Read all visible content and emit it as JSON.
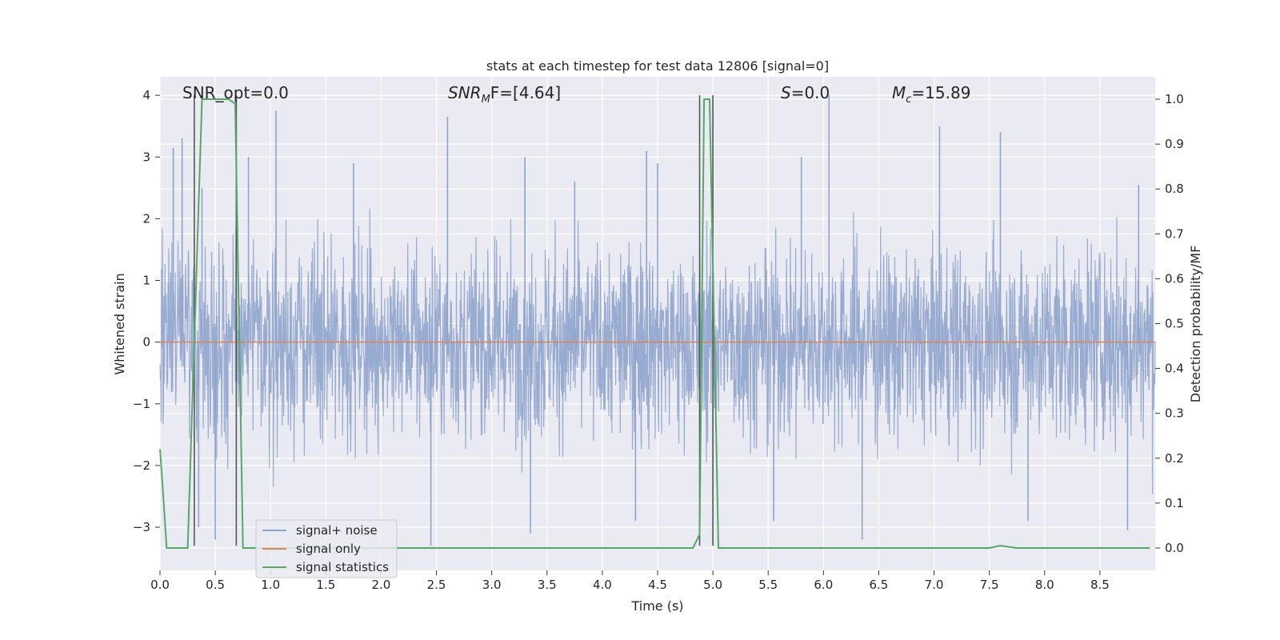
{
  "chart_data": {
    "type": "line",
    "title": "stats at each timestep for test data 12806 [signal=0]",
    "xlabel": "Time (s)",
    "ylabel_left": "Whitened strain",
    "ylabel_right": "Detection probability/MF",
    "xlim": [
      0.0,
      9.0
    ],
    "ylim_left": [
      -3.7,
      4.3
    ],
    "ylim_right": [
      -0.05,
      1.05
    ],
    "x_ticks": [
      "0.0",
      "0.5",
      "1.0",
      "1.5",
      "2.0",
      "2.5",
      "3.0",
      "3.5",
      "4.0",
      "4.5",
      "5.0",
      "5.5",
      "6.0",
      "6.5",
      "7.0",
      "7.5",
      "8.0",
      "8.5"
    ],
    "y_ticks_left": [
      "−3",
      "−2",
      "−1",
      "0",
      "1",
      "2",
      "3",
      "4"
    ],
    "y_ticks_right": [
      "0.0",
      "0.1",
      "0.2",
      "0.3",
      "0.4",
      "0.5",
      "0.6",
      "0.7",
      "0.8",
      "0.9",
      "1.0"
    ],
    "grid": true,
    "legend_position": "lower-left",
    "annotations": {
      "snr_opt": "SNR_opt=0.0",
      "snr_mf_italic": "SNR",
      "snr_mf_sub": "M",
      "snr_mf_rest": "F=[4.64]",
      "s_italic": "S",
      "s_rest": "=0.0",
      "mc_italic": "M",
      "mc_sub": "c",
      "mc_rest": "=15.89"
    },
    "series": [
      {
        "name": "signal+ noise",
        "axis": "left",
        "color": "#8fa4cc",
        "description_level": "whitened strain noise, roughly within [-3.3, 4.0]",
        "spikes": [
          {
            "x": 0.12,
            "y": 3.15
          },
          {
            "x": 0.2,
            "y": 3.3
          },
          {
            "x": 0.38,
            "y": 2.5
          },
          {
            "x": 0.8,
            "y": 3.0
          },
          {
            "x": 1.05,
            "y": 3.75
          },
          {
            "x": 1.75,
            "y": 2.9
          },
          {
            "x": 2.6,
            "y": 3.65
          },
          {
            "x": 3.3,
            "y": 3.0
          },
          {
            "x": 3.75,
            "y": 2.6
          },
          {
            "x": 4.4,
            "y": 3.1
          },
          {
            "x": 4.5,
            "y": 2.9
          },
          {
            "x": 5.8,
            "y": 3.0
          },
          {
            "x": 6.05,
            "y": 4.0
          },
          {
            "x": 7.05,
            "y": 3.5
          },
          {
            "x": 7.6,
            "y": 3.4
          },
          {
            "x": 8.85,
            "y": 2.55
          },
          {
            "x": 0.35,
            "y": -3.0
          },
          {
            "x": 0.5,
            "y": -3.2
          },
          {
            "x": 2.45,
            "y": -3.3
          },
          {
            "x": 3.35,
            "y": -3.1
          },
          {
            "x": 4.3,
            "y": -2.9
          },
          {
            "x": 5.55,
            "y": -2.9
          },
          {
            "x": 6.35,
            "y": -3.2
          },
          {
            "x": 7.85,
            "y": -2.9
          },
          {
            "x": 8.75,
            "y": -3.05
          }
        ]
      },
      {
        "name": "signal only",
        "axis": "left",
        "color": "#dd8452",
        "x": [
          0.0,
          9.0
        ],
        "y": [
          0.0,
          0.0
        ]
      },
      {
        "name": "signal statistics",
        "axis": "right",
        "color": "#55a868",
        "x": [
          0.0,
          0.02,
          0.06,
          0.25,
          0.38,
          0.42,
          0.62,
          0.68,
          0.75,
          0.82,
          4.82,
          4.88,
          4.92,
          4.97,
          5.05,
          5.12,
          7.5,
          7.6,
          7.75,
          8.95
        ],
        "y": [
          0.22,
          0.15,
          0.0,
          0.0,
          1.0,
          1.0,
          1.0,
          0.99,
          0.0,
          0.0,
          0.0,
          0.03,
          1.0,
          1.0,
          0.0,
          0.0,
          0.0,
          0.005,
          0.0,
          0.0
        ]
      }
    ],
    "vertical_markers": [
      {
        "x": 0.31,
        "y0": -3.3,
        "y1": 4.0
      },
      {
        "x": 0.69,
        "y0": -3.3,
        "y1": 4.0
      },
      {
        "x": 4.88,
        "y0": -3.3,
        "y1": 4.0
      },
      {
        "x": 5.0,
        "y0": -3.3,
        "y1": 4.0
      }
    ],
    "colors": {
      "plot_background": "#eaeaf2",
      "grid": "#ffffff",
      "marker": "#555555"
    }
  }
}
